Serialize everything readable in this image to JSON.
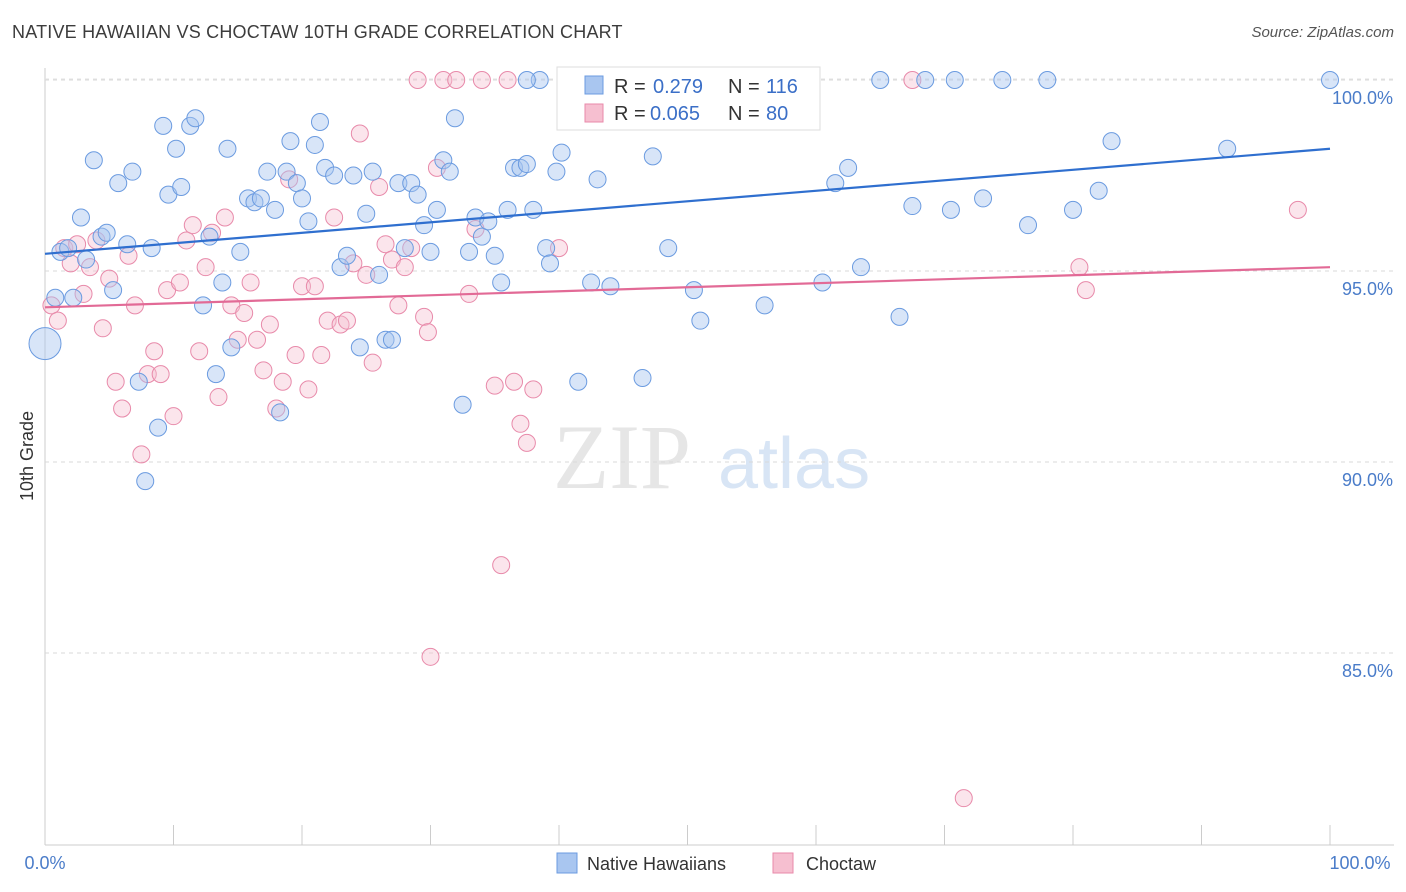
{
  "header": {
    "title": "NATIVE HAWAIIAN VS CHOCTAW 10TH GRADE CORRELATION CHART",
    "source": "Source: ZipAtlas.com"
  },
  "watermark": {
    "zip": "ZIP",
    "atlas": "atlas"
  },
  "legend": {
    "r_label": "R =",
    "n_label": "N =",
    "entries": [
      {
        "name": "Native Hawaiians",
        "r": "0.279",
        "n": "116",
        "fill": "#a9c6f0",
        "stroke": "#6b9be0"
      },
      {
        "name": "Choctaw",
        "r": "0.065",
        "n": "80",
        "fill": "#f6bfd0",
        "stroke": "#e88aaa"
      }
    ]
  },
  "chart_data": {
    "type": "scatter",
    "title": "NATIVE HAWAIIAN VS CHOCTAW 10TH GRADE CORRELATION CHART",
    "xlabel": "",
    "ylabel": "10th Grade",
    "xlim": [
      0,
      100
    ],
    "ylim": [
      80.5,
      100.8
    ],
    "x_tick_labels": [
      "0.0%",
      "100.0%"
    ],
    "y_ticks": [
      100,
      95,
      90,
      85
    ],
    "y_tick_labels": [
      "100.0%",
      "95.0%",
      "90.0%",
      "85.0%"
    ],
    "grid": "horizontal dashed",
    "legend_position": "top-center",
    "colors": {
      "blue_line": "#2f6fcf",
      "pink_line": "#e26a96",
      "tick_text": "#4a7cc9"
    },
    "series": [
      {
        "name": "Native Hawaiians",
        "color": "#a9c6f0",
        "trend": {
          "y_at_0": 95.45,
          "y_at_100": 98.2
        },
        "points": [
          [
            0,
            93.1
          ],
          [
            0.8,
            94.3
          ],
          [
            1.2,
            95.5
          ],
          [
            1.8,
            95.6
          ],
          [
            2.2,
            94.3
          ],
          [
            2.8,
            96.4
          ],
          [
            3.2,
            95.3
          ],
          [
            3.8,
            97.9
          ],
          [
            4.4,
            95.9
          ],
          [
            4.8,
            96.0
          ],
          [
            5.3,
            94.5
          ],
          [
            5.7,
            97.3
          ],
          [
            6.4,
            95.7
          ],
          [
            6.8,
            97.6
          ],
          [
            7.3,
            92.1
          ],
          [
            7.8,
            89.5
          ],
          [
            8.3,
            95.6
          ],
          [
            8.8,
            90.9
          ],
          [
            9.2,
            98.8
          ],
          [
            9.6,
            97.0
          ],
          [
            10.2,
            98.2
          ],
          [
            10.6,
            97.2
          ],
          [
            11.3,
            98.8
          ],
          [
            11.7,
            99.0
          ],
          [
            12.3,
            94.1
          ],
          [
            12.8,
            95.9
          ],
          [
            13.3,
            92.3
          ],
          [
            13.8,
            94.7
          ],
          [
            14.2,
            98.2
          ],
          [
            14.5,
            93.0
          ],
          [
            15.2,
            95.5
          ],
          [
            15.8,
            96.9
          ],
          [
            16.3,
            96.8
          ],
          [
            16.8,
            96.9
          ],
          [
            17.3,
            97.6
          ],
          [
            17.9,
            96.6
          ],
          [
            18.3,
            91.3
          ],
          [
            18.8,
            97.6
          ],
          [
            19.1,
            98.4
          ],
          [
            19.6,
            97.3
          ],
          [
            20.0,
            96.9
          ],
          [
            20.5,
            96.3
          ],
          [
            21.0,
            98.3
          ],
          [
            21.4,
            98.9
          ],
          [
            21.8,
            97.7
          ],
          [
            22.5,
            97.5
          ],
          [
            23.0,
            95.1
          ],
          [
            23.5,
            95.4
          ],
          [
            24.0,
            97.5
          ],
          [
            24.5,
            93.0
          ],
          [
            25.0,
            96.5
          ],
          [
            25.5,
            97.6
          ],
          [
            26.0,
            94.9
          ],
          [
            26.5,
            93.2
          ],
          [
            27.0,
            93.2
          ],
          [
            27.5,
            97.3
          ],
          [
            28.0,
            95.6
          ],
          [
            28.5,
            97.3
          ],
          [
            29.0,
            97.0
          ],
          [
            29.5,
            96.2
          ],
          [
            30.0,
            95.5
          ],
          [
            30.5,
            96.6
          ],
          [
            31.0,
            97.9
          ],
          [
            31.5,
            97.6
          ],
          [
            31.9,
            99.0
          ],
          [
            32.5,
            91.5
          ],
          [
            33.0,
            95.5
          ],
          [
            33.5,
            96.4
          ],
          [
            34.0,
            95.9
          ],
          [
            34.5,
            96.3
          ],
          [
            35.0,
            95.4
          ],
          [
            35.5,
            94.7
          ],
          [
            36.0,
            96.6
          ],
          [
            36.5,
            97.7
          ],
          [
            37.0,
            97.7
          ],
          [
            37.5,
            97.8
          ],
          [
            38.0,
            96.6
          ],
          [
            38.5,
            100.0
          ],
          [
            39.0,
            95.6
          ],
          [
            39.3,
            95.2
          ],
          [
            39.8,
            97.6
          ],
          [
            40.2,
            98.1
          ],
          [
            41.0,
            100.0
          ],
          [
            41.5,
            92.1
          ],
          [
            42.5,
            94.7
          ],
          [
            43.0,
            97.4
          ],
          [
            44.0,
            94.6
          ],
          [
            45.5,
            100.0
          ],
          [
            46.5,
            92.2
          ],
          [
            47.3,
            98.0
          ],
          [
            48.5,
            95.6
          ],
          [
            50.5,
            94.5
          ],
          [
            51.0,
            93.7
          ],
          [
            54.0,
            100.0
          ],
          [
            56.0,
            94.1
          ],
          [
            57.5,
            100.0
          ],
          [
            60.5,
            94.7
          ],
          [
            61.5,
            97.3
          ],
          [
            62.5,
            97.7
          ],
          [
            63.5,
            95.1
          ],
          [
            65.0,
            100.0
          ],
          [
            66.5,
            93.8
          ],
          [
            67.5,
            96.7
          ],
          [
            68.5,
            100.0
          ],
          [
            70.5,
            96.6
          ],
          [
            70.8,
            100.0
          ],
          [
            73.0,
            96.9
          ],
          [
            74.5,
            100.0
          ],
          [
            76.5,
            96.2
          ],
          [
            78.0,
            100.0
          ],
          [
            80.0,
            96.6
          ],
          [
            82.0,
            97.1
          ],
          [
            83.0,
            98.4
          ],
          [
            92.0,
            98.2
          ],
          [
            100.0,
            100.0
          ],
          [
            37.5,
            100.0
          ]
        ]
      },
      {
        "name": "Choctaw",
        "color": "#f6bfd0",
        "trend": {
          "y_at_0": 94.05,
          "y_at_100": 95.1
        },
        "points": [
          [
            0.5,
            94.1
          ],
          [
            1.0,
            93.7
          ],
          [
            1.5,
            95.6
          ],
          [
            2.0,
            95.2
          ],
          [
            2.5,
            95.7
          ],
          [
            3.0,
            94.4
          ],
          [
            3.5,
            95.1
          ],
          [
            4.0,
            95.8
          ],
          [
            4.5,
            93.5
          ],
          [
            5.0,
            94.8
          ],
          [
            5.5,
            92.1
          ],
          [
            6.0,
            91.4
          ],
          [
            6.5,
            95.4
          ],
          [
            7.0,
            94.1
          ],
          [
            7.5,
            90.2
          ],
          [
            8.0,
            92.3
          ],
          [
            8.5,
            92.9
          ],
          [
            9.0,
            92.3
          ],
          [
            9.5,
            94.5
          ],
          [
            10.0,
            91.2
          ],
          [
            10.5,
            94.7
          ],
          [
            11.0,
            95.8
          ],
          [
            11.5,
            96.2
          ],
          [
            12.0,
            92.9
          ],
          [
            12.5,
            95.1
          ],
          [
            13.0,
            96.0
          ],
          [
            13.5,
            91.7
          ],
          [
            14.0,
            96.4
          ],
          [
            14.5,
            94.1
          ],
          [
            15.0,
            93.2
          ],
          [
            15.5,
            93.9
          ],
          [
            16.0,
            94.7
          ],
          [
            16.5,
            93.2
          ],
          [
            17.0,
            92.4
          ],
          [
            17.5,
            93.6
          ],
          [
            18.0,
            91.4
          ],
          [
            18.5,
            92.1
          ],
          [
            19.0,
            97.4
          ],
          [
            19.5,
            92.8
          ],
          [
            20.0,
            94.6
          ],
          [
            20.5,
            91.9
          ],
          [
            21.0,
            94.6
          ],
          [
            21.5,
            92.8
          ],
          [
            22.0,
            93.7
          ],
          [
            22.5,
            96.4
          ],
          [
            23.0,
            93.6
          ],
          [
            23.5,
            93.7
          ],
          [
            24.0,
            95.2
          ],
          [
            24.5,
            98.6
          ],
          [
            25.0,
            94.9
          ],
          [
            25.5,
            92.6
          ],
          [
            26.0,
            97.2
          ],
          [
            26.5,
            95.7
          ],
          [
            27.0,
            95.3
          ],
          [
            27.5,
            94.1
          ],
          [
            28.0,
            95.1
          ],
          [
            28.5,
            95.6
          ],
          [
            29.0,
            100.0
          ],
          [
            29.5,
            93.8
          ],
          [
            29.8,
            93.4
          ],
          [
            30.0,
            84.9
          ],
          [
            30.5,
            97.7
          ],
          [
            31.0,
            100.0
          ],
          [
            32.0,
            100.0
          ],
          [
            33.0,
            94.4
          ],
          [
            33.5,
            96.1
          ],
          [
            34.0,
            100.0
          ],
          [
            35.0,
            92.0
          ],
          [
            35.5,
            87.3
          ],
          [
            36.0,
            100.0
          ],
          [
            36.5,
            92.1
          ],
          [
            37.0,
            91.0
          ],
          [
            37.5,
            90.5
          ],
          [
            38.0,
            91.9
          ],
          [
            40.0,
            95.6
          ],
          [
            67.5,
            100.0
          ],
          [
            71.5,
            81.2
          ],
          [
            80.5,
            95.1
          ],
          [
            81.0,
            94.5
          ],
          [
            97.5,
            96.6
          ]
        ]
      }
    ]
  },
  "bottom_legend": {
    "items": [
      "Native Hawaiians",
      "Choctaw"
    ]
  }
}
